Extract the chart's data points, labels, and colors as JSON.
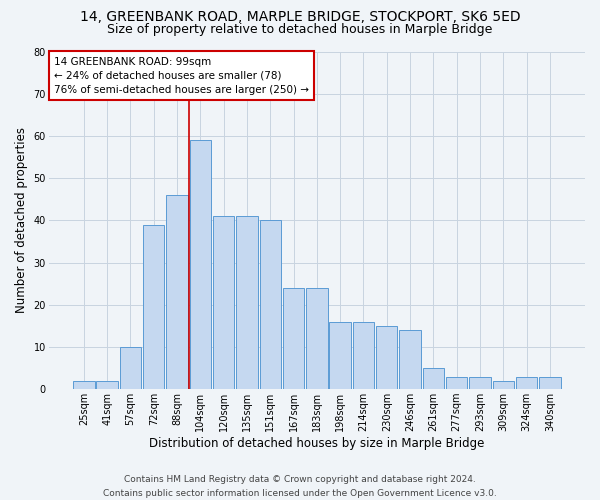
{
  "title": "14, GREENBANK ROAD, MARPLE BRIDGE, STOCKPORT, SK6 5ED",
  "subtitle": "Size of property relative to detached houses in Marple Bridge",
  "xlabel": "Distribution of detached houses by size in Marple Bridge",
  "ylabel": "Number of detached properties",
  "footer_line1": "Contains HM Land Registry data © Crown copyright and database right 2024.",
  "footer_line2": "Contains public sector information licensed under the Open Government Licence v3.0.",
  "bar_labels": [
    "25sqm",
    "41sqm",
    "57sqm",
    "72sqm",
    "88sqm",
    "104sqm",
    "120sqm",
    "135sqm",
    "151sqm",
    "167sqm",
    "183sqm",
    "198sqm",
    "214sqm",
    "230sqm",
    "246sqm",
    "261sqm",
    "277sqm",
    "293sqm",
    "309sqm",
    "324sqm",
    "340sqm"
  ],
  "bar_values": [
    2,
    2,
    10,
    39,
    46,
    59,
    41,
    41,
    40,
    24,
    24,
    16,
    16,
    15,
    14,
    5,
    3,
    3,
    2,
    3,
    3
  ],
  "bar_color": "#c5d8f0",
  "bar_edge_color": "#5b9bd5",
  "vline_color": "#cc0000",
  "annotation_text": "14 GREENBANK ROAD: 99sqm\n← 24% of detached houses are smaller (78)\n76% of semi-detached houses are larger (250) →",
  "annotation_box_color": "#cc0000",
  "ylim": [
    0,
    80
  ],
  "yticks": [
    0,
    10,
    20,
    30,
    40,
    50,
    60,
    70,
    80
  ],
  "background_color": "#f0f4f8",
  "plot_background_color": "#f0f4f8",
  "grid_color": "#c8d4e0",
  "title_fontsize": 10,
  "subtitle_fontsize": 9,
  "axis_label_fontsize": 8.5,
  "tick_fontsize": 7,
  "footer_fontsize": 6.5,
  "annotation_fontsize": 7.5
}
